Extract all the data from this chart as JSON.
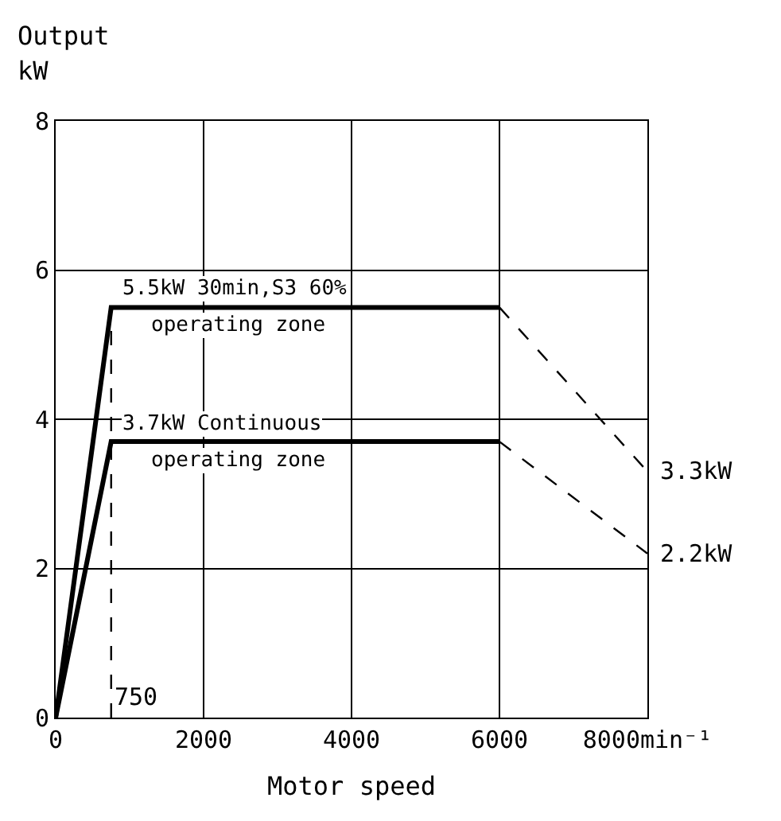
{
  "chart_data": {
    "type": "line",
    "title": "Output",
    "ylabel": "kW",
    "xlabel": "Motor speed",
    "series": [
      {
        "color": "#000000",
        "x": [
          0,
          750,
          6000
        ],
        "values": [
          0,
          5.5,
          5.5
        ],
        "line_style": "solid"
      },
      {
        "color": "#000000",
        "x": [
          6000,
          8000
        ],
        "values": [
          5.5,
          3.3
        ],
        "line_style": "dashed"
      },
      {
        "color": "#000000",
        "x": [
          0,
          750,
          6000
        ],
        "values": [
          0,
          3.7,
          3.7
        ],
        "line_style": "solid"
      },
      {
        "color": "#000000",
        "x": [
          6000,
          8000
        ],
        "values": [
          3.7,
          2.2
        ],
        "line_style": "dashed"
      }
    ],
    "xlim": [
      0,
      8000
    ],
    "ylim": [
      0,
      8
    ],
    "xticks": [
      0,
      2000,
      4000,
      6000,
      {
        "value": 8000,
        "label": "8000min⁻¹"
      }
    ],
    "yticks": [
      0,
      2,
      4,
      6,
      8
    ],
    "ref_lines": [
      {
        "axis": "x",
        "value": 750,
        "label": "750",
        "line_style": "dashed",
        "color": "#000000"
      }
    ],
    "annotations": [
      "5.5kW 30min,S3 60%\noperating zone",
      "3.7kW Continuous\noperating zone",
      "3.3kW",
      "2.2kW"
    ],
    "grid": true,
    "marker": "none"
  }
}
